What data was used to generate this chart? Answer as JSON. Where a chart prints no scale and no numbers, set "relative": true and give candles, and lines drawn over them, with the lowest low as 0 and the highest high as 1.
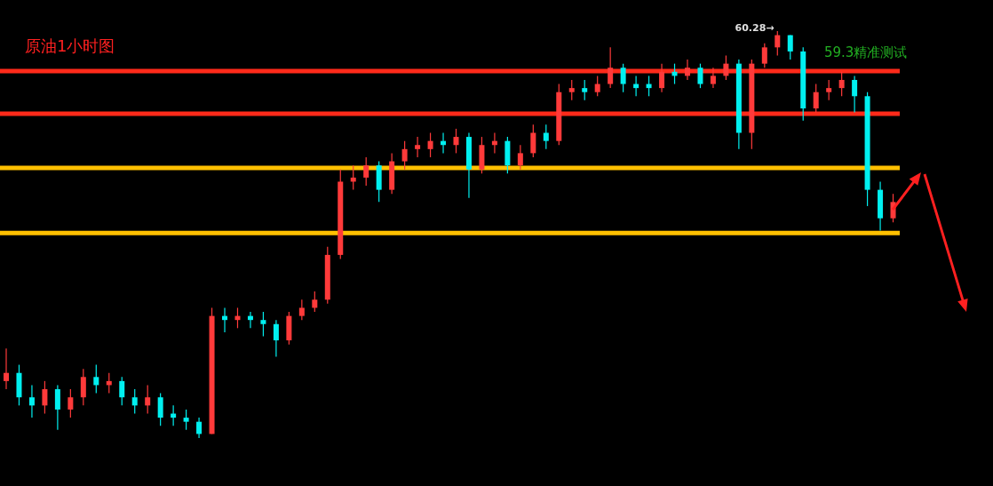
{
  "chart_data": {
    "type": "candlestick",
    "title": "原油1小时图",
    "relative": true,
    "tick_labels": false,
    "categories": [
      null,
      null,
      null,
      null,
      null,
      null,
      null,
      null,
      null,
      null,
      null,
      null,
      null,
      null,
      null,
      null,
      null,
      null,
      null,
      null,
      null,
      null,
      null,
      null,
      null,
      null,
      null,
      null,
      null,
      null,
      null,
      null,
      null,
      null,
      null,
      null,
      null,
      null,
      null,
      null,
      null,
      null,
      null,
      null,
      null,
      null,
      null,
      null,
      null,
      null,
      null,
      null,
      null,
      null,
      null,
      null,
      null,
      null,
      null,
      null,
      null,
      null,
      null,
      null,
      null,
      null,
      null,
      null,
      null,
      null
    ],
    "ohlc": [
      [
        0.14,
        0.22,
        0.12,
        0.16
      ],
      [
        0.16,
        0.18,
        0.08,
        0.1
      ],
      [
        0.1,
        0.13,
        0.05,
        0.08
      ],
      [
        0.08,
        0.14,
        0.06,
        0.12
      ],
      [
        0.12,
        0.13,
        0.02,
        0.07
      ],
      [
        0.07,
        0.12,
        0.05,
        0.1
      ],
      [
        0.1,
        0.17,
        0.08,
        0.15
      ],
      [
        0.15,
        0.18,
        0.11,
        0.13
      ],
      [
        0.13,
        0.16,
        0.11,
        0.14
      ],
      [
        0.14,
        0.15,
        0.08,
        0.1
      ],
      [
        0.1,
        0.12,
        0.06,
        0.08
      ],
      [
        0.08,
        0.13,
        0.06,
        0.1
      ],
      [
        0.1,
        0.11,
        0.03,
        0.05
      ],
      [
        0.06,
        0.08,
        0.03,
        0.05
      ],
      [
        0.05,
        0.07,
        0.02,
        0.04
      ],
      [
        0.04,
        0.05,
        0,
        0.01
      ],
      [
        0.01,
        0.32,
        0.01,
        0.3
      ],
      [
        0.3,
        0.32,
        0.26,
        0.29
      ],
      [
        0.29,
        0.32,
        0.27,
        0.3
      ],
      [
        0.3,
        0.31,
        0.27,
        0.29
      ],
      [
        0.29,
        0.31,
        0.25,
        0.28
      ],
      [
        0.28,
        0.29,
        0.2,
        0.24
      ],
      [
        0.24,
        0.31,
        0.23,
        0.3
      ],
      [
        0.3,
        0.34,
        0.29,
        0.32
      ],
      [
        0.32,
        0.36,
        0.31,
        0.34
      ],
      [
        0.34,
        0.47,
        0.33,
        0.45
      ],
      [
        0.45,
        0.66,
        0.44,
        0.63
      ],
      [
        0.63,
        0.67,
        0.61,
        0.64
      ],
      [
        0.64,
        0.69,
        0.62,
        0.67
      ],
      [
        0.67,
        0.68,
        0.58,
        0.61
      ],
      [
        0.61,
        0.7,
        0.6,
        0.68
      ],
      [
        0.68,
        0.73,
        0.66,
        0.71
      ],
      [
        0.71,
        0.74,
        0.69,
        0.72
      ],
      [
        0.71,
        0.75,
        0.69,
        0.73
      ],
      [
        0.73,
        0.75,
        0.7,
        0.72
      ],
      [
        0.72,
        0.76,
        0.7,
        0.74
      ],
      [
        0.74,
        0.75,
        0.59,
        0.66
      ],
      [
        0.66,
        0.74,
        0.65,
        0.72
      ],
      [
        0.72,
        0.75,
        0.7,
        0.73
      ],
      [
        0.73,
        0.74,
        0.65,
        0.67
      ],
      [
        0.67,
        0.72,
        0.66,
        0.7
      ],
      [
        0.7,
        0.77,
        0.69,
        0.75
      ],
      [
        0.75,
        0.77,
        0.71,
        0.73
      ],
      [
        0.73,
        0.87,
        0.72,
        0.85
      ],
      [
        0.85,
        0.88,
        0.83,
        0.86
      ],
      [
        0.86,
        0.88,
        0.83,
        0.85
      ],
      [
        0.85,
        0.89,
        0.84,
        0.87
      ],
      [
        0.87,
        0.96,
        0.86,
        0.91
      ],
      [
        0.91,
        0.92,
        0.85,
        0.87
      ],
      [
        0.87,
        0.89,
        0.84,
        0.86
      ],
      [
        0.87,
        0.89,
        0.84,
        0.86
      ],
      [
        0.86,
        0.92,
        0.85,
        0.9
      ],
      [
        0.9,
        0.92,
        0.87,
        0.89
      ],
      [
        0.89,
        0.93,
        0.88,
        0.91
      ],
      [
        0.91,
        0.92,
        0.86,
        0.87
      ],
      [
        0.87,
        0.91,
        0.86,
        0.89
      ],
      [
        0.89,
        0.94,
        0.88,
        0.92
      ],
      [
        0.92,
        0.93,
        0.71,
        0.75
      ],
      [
        0.75,
        0.93,
        0.71,
        0.92
      ],
      [
        0.92,
        0.97,
        0.91,
        0.96
      ],
      [
        0.96,
        1,
        0.94,
        0.99
      ],
      [
        0.99,
        0.99,
        0.93,
        0.95
      ],
      [
        0.95,
        0.96,
        0.78,
        0.81
      ],
      [
        0.81,
        0.87,
        0.8,
        0.85
      ],
      [
        0.85,
        0.88,
        0.83,
        0.86
      ],
      [
        0.86,
        0.9,
        0.84,
        0.88
      ],
      [
        0.88,
        0.89,
        0.8,
        0.84
      ],
      [
        0.84,
        0.85,
        0.57,
        0.61
      ],
      [
        0.61,
        0.63,
        0.51,
        0.54
      ],
      [
        0.54,
        0.6,
        0.53,
        0.58
      ]
    ],
    "ref_lines": [
      {
        "axis": "y",
        "value": 0.902,
        "color": "#ff2a1a"
      },
      {
        "axis": "y",
        "value": 0.797,
        "color": "#ff2a1a"
      },
      {
        "axis": "y",
        "value": 0.664,
        "color": "#ffc000"
      },
      {
        "axis": "y",
        "value": 0.504,
        "color": "#ffc000"
      }
    ],
    "annotations": [
      "59.3精准测试",
      "60.28→"
    ]
  }
}
